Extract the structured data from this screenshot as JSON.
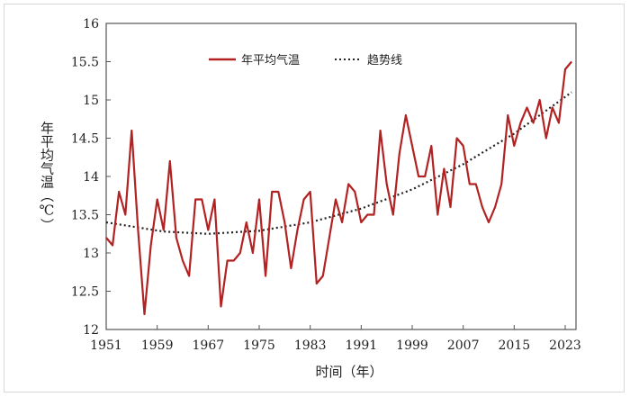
{
  "chart_data": {
    "type": "line",
    "title": "",
    "xlabel": "时间（年）",
    "ylabel": "年平均气温（℃）",
    "ylim": [
      12,
      16
    ],
    "xlim": [
      1951,
      2024
    ],
    "yticks": [
      "12",
      "12.5",
      "13",
      "13.5",
      "14",
      "14.5",
      "15",
      "15.5",
      "16"
    ],
    "xticks": [
      "1951",
      "1959",
      "1967",
      "1975",
      "1983",
      "1991",
      "1999",
      "2007",
      "2015",
      "2023"
    ],
    "grid": false,
    "legend_position": "top",
    "series": [
      {
        "name": "年平均气温",
        "color": "#b22222",
        "style": "solid",
        "x": [
          1951,
          1952,
          1953,
          1954,
          1955,
          1956,
          1957,
          1958,
          1959,
          1960,
          1961,
          1962,
          1963,
          1964,
          1965,
          1966,
          1967,
          1968,
          1969,
          1970,
          1971,
          1972,
          1973,
          1974,
          1975,
          1976,
          1977,
          1978,
          1979,
          1980,
          1981,
          1982,
          1983,
          1984,
          1985,
          1986,
          1987,
          1988,
          1989,
          1990,
          1991,
          1992,
          1993,
          1994,
          1995,
          1996,
          1997,
          1998,
          1999,
          2000,
          2001,
          2002,
          2003,
          2004,
          2005,
          2006,
          2007,
          2008,
          2009,
          2010,
          2011,
          2012,
          2013,
          2014,
          2015,
          2016,
          2017,
          2018,
          2019,
          2020,
          2021,
          2022,
          2023,
          2024
        ],
        "values": [
          13.2,
          13.1,
          13.8,
          13.5,
          14.6,
          13.3,
          12.2,
          13.1,
          13.7,
          13.3,
          14.2,
          13.2,
          12.9,
          12.7,
          13.7,
          13.7,
          13.3,
          13.7,
          12.3,
          12.9,
          12.9,
          13.0,
          13.4,
          13.0,
          13.7,
          12.7,
          13.8,
          13.8,
          13.4,
          12.8,
          13.3,
          13.7,
          13.8,
          12.6,
          12.7,
          13.2,
          13.7,
          13.4,
          13.9,
          13.8,
          13.4,
          13.5,
          13.5,
          14.6,
          13.9,
          13.5,
          14.3,
          14.8,
          14.4,
          14.0,
          14.0,
          14.4,
          13.5,
          14.1,
          13.6,
          14.5,
          14.4,
          13.9,
          13.9,
          13.6,
          13.4,
          13.6,
          13.9,
          14.8,
          14.4,
          14.7,
          14.9,
          14.7,
          15.0,
          14.5,
          14.9,
          14.7,
          15.4,
          15.5
        ]
      },
      {
        "name": "趋势线",
        "color": "#222222",
        "style": "dotted",
        "fit": "quadratic",
        "x": [
          1951,
          1960,
          1967,
          1975,
          1983,
          1991,
          1999,
          2007,
          2015,
          2024
        ],
        "values": [
          13.4,
          13.28,
          13.25,
          13.29,
          13.4,
          13.58,
          13.83,
          14.16,
          14.56,
          15.1
        ]
      }
    ]
  }
}
